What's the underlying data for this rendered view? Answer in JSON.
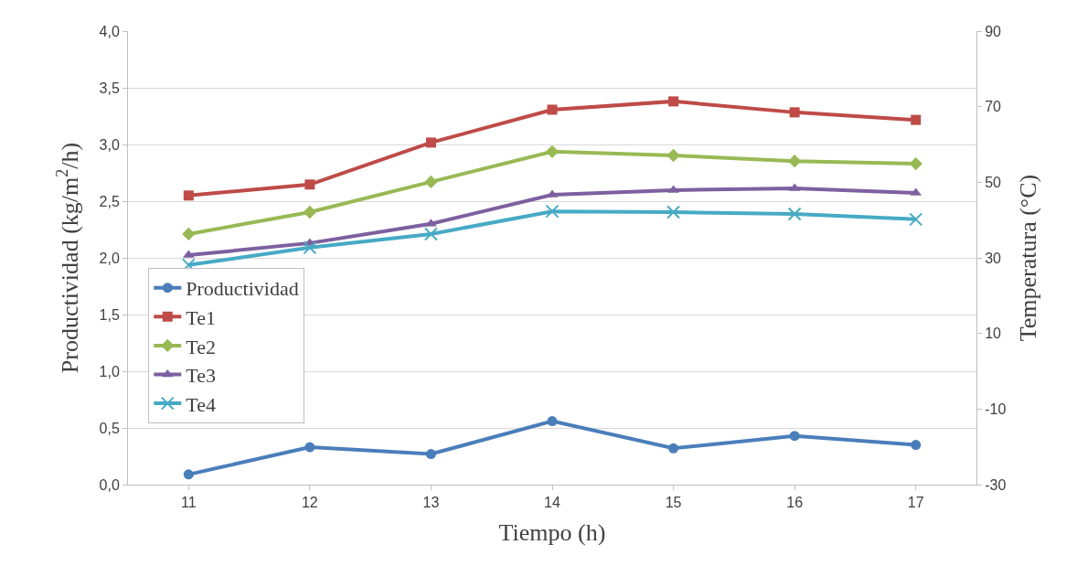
{
  "chart_data": {
    "type": "line",
    "xlabel": "Tiempo (h)",
    "ylabel": "Productividad (kg/m$^{2}$/h)",
    "y2label": "Temperatura (°C)",
    "categories": [
      "11",
      "12",
      "13",
      "14",
      "15",
      "16",
      "17"
    ],
    "series": [
      {
        "name": "Productividad",
        "color": "#4a7ebb",
        "marker": "circle",
        "values": [
          0.09,
          0.33,
          0.27,
          0.56,
          0.32,
          0.43,
          0.35
        ]
      },
      {
        "name": "Te1",
        "color": "#be4b48",
        "marker": "square",
        "axis": "y2",
        "values": [
          46.5,
          49.4,
          60.5,
          69.2,
          71.4,
          68.5,
          66.5
        ]
      },
      {
        "name": "Te2",
        "color": "#98b954",
        "marker": "diamond",
        "axis": "y2",
        "values": [
          36.3,
          42.1,
          50.1,
          58.1,
          57.1,
          55.6,
          54.9
        ]
      },
      {
        "name": "Te3",
        "color": "#7d60a0",
        "marker": "triangle",
        "axis": "y2",
        "values": [
          30.7,
          33.9,
          39.0,
          46.7,
          47.9,
          48.4,
          47.2
        ]
      },
      {
        "name": "Te4",
        "color": "#46aac5",
        "marker": "cross",
        "axis": "y2",
        "values": [
          28.1,
          32.7,
          36.3,
          42.3,
          42.1,
          41.6,
          40.2
        ]
      }
    ],
    "ylim": [
      0,
      4
    ],
    "yticks": [
      {
        "value": 0,
        "label": "0,0"
      },
      {
        "value": 0.5,
        "label": "0,5"
      },
      {
        "value": 1,
        "label": "1,0"
      },
      {
        "value": 1.5,
        "label": "1,5"
      },
      {
        "value": 2,
        "label": "2,0"
      },
      {
        "value": 2.5,
        "label": "2,5"
      },
      {
        "value": 3,
        "label": "3,0"
      },
      {
        "value": 3.5,
        "label": "3,5"
      },
      {
        "value": 4,
        "label": "4,0"
      }
    ],
    "y2lim": [
      -30,
      90
    ],
    "y2ticks": [
      -30,
      -10,
      10,
      30,
      50,
      70,
      90
    ],
    "grid": "y",
    "legend": "left",
    "line_style": "solid"
  }
}
